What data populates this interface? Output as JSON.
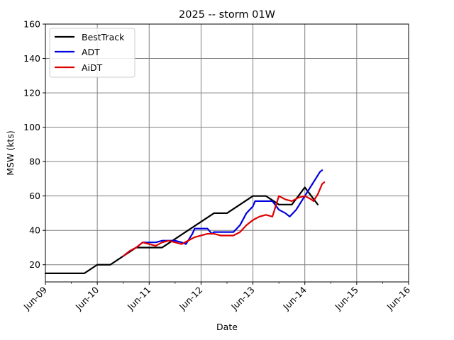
{
  "chart_data": {
    "type": "line",
    "title": "2025 -- storm 01W",
    "xlabel": "Date",
    "ylabel": "MSW (kts)",
    "x_tick_labels": [
      "Jun-09",
      "Jun-10",
      "Jun-11",
      "Jun-12",
      "Jun-13",
      "Jun-14",
      "Jun-15",
      "Jun-16"
    ],
    "x_ticks": [
      "2025-06-09",
      "2025-06-10",
      "2025-06-11",
      "2025-06-12",
      "2025-06-13",
      "2025-06-14",
      "2025-06-15",
      "2025-06-16"
    ],
    "xlim": [
      "2025-06-09T00:00",
      "2025-06-16T00:00"
    ],
    "ylim": [
      10,
      160
    ],
    "y_ticks": [
      20,
      40,
      60,
      80,
      100,
      120,
      140,
      160
    ],
    "grid": true,
    "legend_position": "top-left",
    "series": [
      {
        "name": "BestTrack",
        "color": "#000000",
        "points": [
          [
            "2025-06-09T00:00",
            15
          ],
          [
            "2025-06-09T18:00",
            15
          ],
          [
            "2025-06-10T00:00",
            20
          ],
          [
            "2025-06-10T06:00",
            20
          ],
          [
            "2025-06-10T12:00",
            25
          ],
          [
            "2025-06-10T18:00",
            30
          ],
          [
            "2025-06-11T00:00",
            30
          ],
          [
            "2025-06-11T06:00",
            30
          ],
          [
            "2025-06-11T12:00",
            35
          ],
          [
            "2025-06-11T18:00",
            40
          ],
          [
            "2025-06-12T00:00",
            45
          ],
          [
            "2025-06-12T06:00",
            50
          ],
          [
            "2025-06-12T12:00",
            50
          ],
          [
            "2025-06-12T18:00",
            55
          ],
          [
            "2025-06-13T00:00",
            60
          ],
          [
            "2025-06-13T06:00",
            60
          ],
          [
            "2025-06-13T12:00",
            55
          ],
          [
            "2025-06-13T18:00",
            55
          ],
          [
            "2025-06-14T00:00",
            65
          ],
          [
            "2025-06-14T06:00",
            55
          ]
        ]
      },
      {
        "name": "ADT",
        "color": "#0000dd",
        "points": [
          [
            "2025-06-10T12:00",
            25
          ],
          [
            "2025-06-10T15:00",
            28
          ],
          [
            "2025-06-10T18:00",
            30
          ],
          [
            "2025-06-10T21:00",
            33
          ],
          [
            "2025-06-11T03:00",
            33
          ],
          [
            "2025-06-11T06:00",
            34
          ],
          [
            "2025-06-11T12:00",
            34
          ],
          [
            "2025-06-11T15:00",
            33
          ],
          [
            "2025-06-11T17:00",
            32
          ],
          [
            "2025-06-11T20:00",
            38
          ],
          [
            "2025-06-11T21:00",
            41
          ],
          [
            "2025-06-12T03:00",
            41
          ],
          [
            "2025-06-12T05:00",
            38
          ],
          [
            "2025-06-12T06:00",
            39
          ],
          [
            "2025-06-12T15:00",
            39
          ],
          [
            "2025-06-12T18:00",
            43
          ],
          [
            "2025-06-12T21:00",
            50
          ],
          [
            "2025-06-13T00:00",
            54
          ],
          [
            "2025-06-13T01:00",
            57
          ],
          [
            "2025-06-13T09:00",
            57
          ],
          [
            "2025-06-13T12:00",
            52
          ],
          [
            "2025-06-13T15:00",
            50
          ],
          [
            "2025-06-13T17:00",
            48
          ],
          [
            "2025-06-13T20:00",
            52
          ],
          [
            "2025-06-14T00:00",
            60
          ],
          [
            "2025-06-14T03:00",
            66
          ],
          [
            "2025-06-14T05:00",
            70
          ],
          [
            "2025-06-14T07:00",
            74
          ],
          [
            "2025-06-14T08:00",
            75
          ]
        ]
      },
      {
        "name": "AiDT",
        "color": "#dd0000",
        "points": [
          [
            "2025-06-10T12:00",
            25
          ],
          [
            "2025-06-10T15:00",
            28
          ],
          [
            "2025-06-10T18:00",
            30
          ],
          [
            "2025-06-10T21:00",
            33
          ],
          [
            "2025-06-11T00:00",
            32
          ],
          [
            "2025-06-11T03:00",
            31
          ],
          [
            "2025-06-11T06:00",
            33
          ],
          [
            "2025-06-11T09:00",
            34
          ],
          [
            "2025-06-11T12:00",
            33
          ],
          [
            "2025-06-11T15:00",
            32
          ],
          [
            "2025-06-11T18:00",
            34
          ],
          [
            "2025-06-11T21:00",
            36
          ],
          [
            "2025-06-12T00:00",
            37
          ],
          [
            "2025-06-12T03:00",
            38
          ],
          [
            "2025-06-12T06:00",
            38
          ],
          [
            "2025-06-12T09:00",
            37
          ],
          [
            "2025-06-12T12:00",
            37
          ],
          [
            "2025-06-12T15:00",
            37
          ],
          [
            "2025-06-12T18:00",
            39
          ],
          [
            "2025-06-12T21:00",
            43
          ],
          [
            "2025-06-13T00:00",
            46
          ],
          [
            "2025-06-13T03:00",
            48
          ],
          [
            "2025-06-13T06:00",
            49
          ],
          [
            "2025-06-13T09:00",
            48
          ],
          [
            "2025-06-13T12:00",
            60
          ],
          [
            "2025-06-13T15:00",
            58
          ],
          [
            "2025-06-13T18:00",
            57
          ],
          [
            "2025-06-13T21:00",
            59
          ],
          [
            "2025-06-14T00:00",
            60
          ],
          [
            "2025-06-14T03:00",
            58
          ],
          [
            "2025-06-14T04:00",
            57
          ],
          [
            "2025-06-14T06:00",
            61
          ],
          [
            "2025-06-14T08:00",
            67
          ],
          [
            "2025-06-14T09:00",
            68
          ]
        ]
      }
    ]
  }
}
